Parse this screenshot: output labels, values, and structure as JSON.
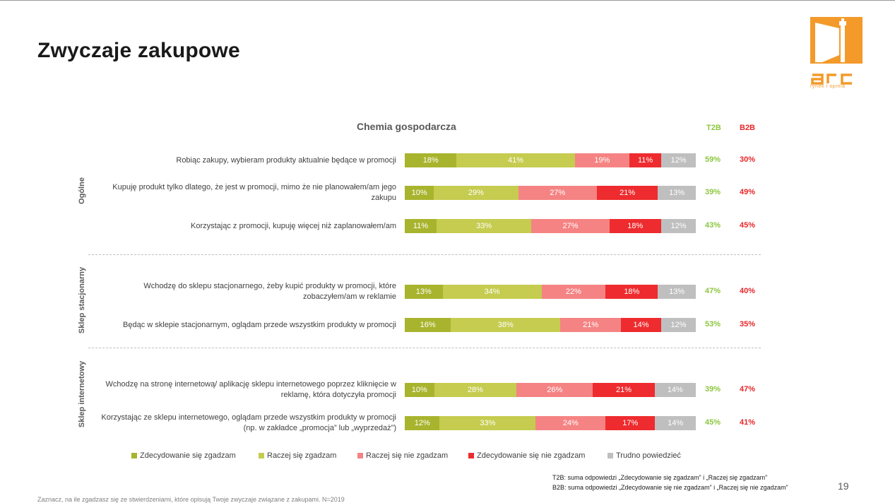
{
  "page": {
    "title": "Zwyczaje zakupowe",
    "page_number": "19",
    "footer": "Zaznacz, na ile zgadzasz się ze stwierdzeniami, które opisują Twoje zwyczaje związane z zakupami. N=2019",
    "logo": {
      "name": "arc",
      "tagline": "rynek i opinia"
    },
    "notes": [
      "T2B: suma odpowiedzi „Zdecydowanie się zgadzam” i „Raczej się zgadzam”",
      "B2B: suma odpowiedzi „Zdecydowanie się nie zgadzam” i „Raczej się nie zgadzam”"
    ]
  },
  "colors": {
    "strong_agree": "#a8b42d",
    "agree": "#c5cc4f",
    "disagree": "#f58383",
    "strong_disagree": "#ee2b2e",
    "dont_know": "#bfbfbf",
    "t2b": "#8dc63f",
    "b2b": "#e8262a",
    "brand": "#f39a2a"
  },
  "chart_data": {
    "type": "bar",
    "orientation": "horizontal",
    "stacked": true,
    "title": "Chemia gospodarcza",
    "summary_headers": {
      "t2b": "T2B",
      "b2b": "B2B"
    },
    "legend_position": "bottom",
    "series": [
      {
        "name": "Zdecydowanie się zgadzam",
        "key": "strong_agree"
      },
      {
        "name": "Raczej się zgadzam",
        "key": "agree"
      },
      {
        "name": "Raczej się nie zgadzam",
        "key": "disagree"
      },
      {
        "name": "Zdecydowanie się nie zgadzam",
        "key": "strong_disagree"
      },
      {
        "name": "Trudno powiedzieć",
        "key": "dont_know"
      }
    ],
    "groups": [
      {
        "name": "Ogólne",
        "rows": [
          {
            "label": "Robiąc zakupy, wybieram produkty aktualnie będące w promocji",
            "values": [
              18,
              41,
              19,
              11,
              12
            ],
            "t2b": "59%",
            "b2b": "30%"
          },
          {
            "label": "Kupuję produkt tylko dlatego, że jest w promocji, mimo że nie planowałem/am jego zakupu",
            "values": [
              10,
              29,
              27,
              21,
              13
            ],
            "t2b": "39%",
            "b2b": "49%"
          },
          {
            "label": "Korzystając z promocji, kupuję więcej niż zaplanowałem/am",
            "values": [
              11,
              33,
              27,
              18,
              12
            ],
            "t2b": "43%",
            "b2b": "45%"
          }
        ]
      },
      {
        "name": "Sklep stacjonarny",
        "rows": [
          {
            "label": "Wchodzę do sklepu stacjonarnego, żeby kupić produkty w promocji, które zobaczyłem/am w reklamie",
            "values": [
              13,
              34,
              22,
              18,
              13
            ],
            "t2b": "47%",
            "b2b": "40%"
          },
          {
            "label": "Będąc w sklepie stacjonarnym, oglądam przede wszystkim produkty w promocji",
            "values": [
              16,
              38,
              21,
              14,
              12
            ],
            "t2b": "53%",
            "b2b": "35%"
          }
        ]
      },
      {
        "name": "Sklep internetowy",
        "rows": [
          {
            "label": "Wchodzę na stronę internetową/ aplikację sklepu internetowego poprzez kliknięcie w reklamę, która dotyczyła promocji",
            "values": [
              10,
              28,
              26,
              21,
              14
            ],
            "t2b": "39%",
            "b2b": "47%"
          },
          {
            "label": "Korzystając ze sklepu internetowego, oglądam przede wszystkim produkty w promocji  (np. w zakładce „promocja” lub „wyprzedaż”)",
            "values": [
              12,
              33,
              24,
              17,
              14
            ],
            "t2b": "45%",
            "b2b": "41%"
          }
        ]
      }
    ]
  }
}
